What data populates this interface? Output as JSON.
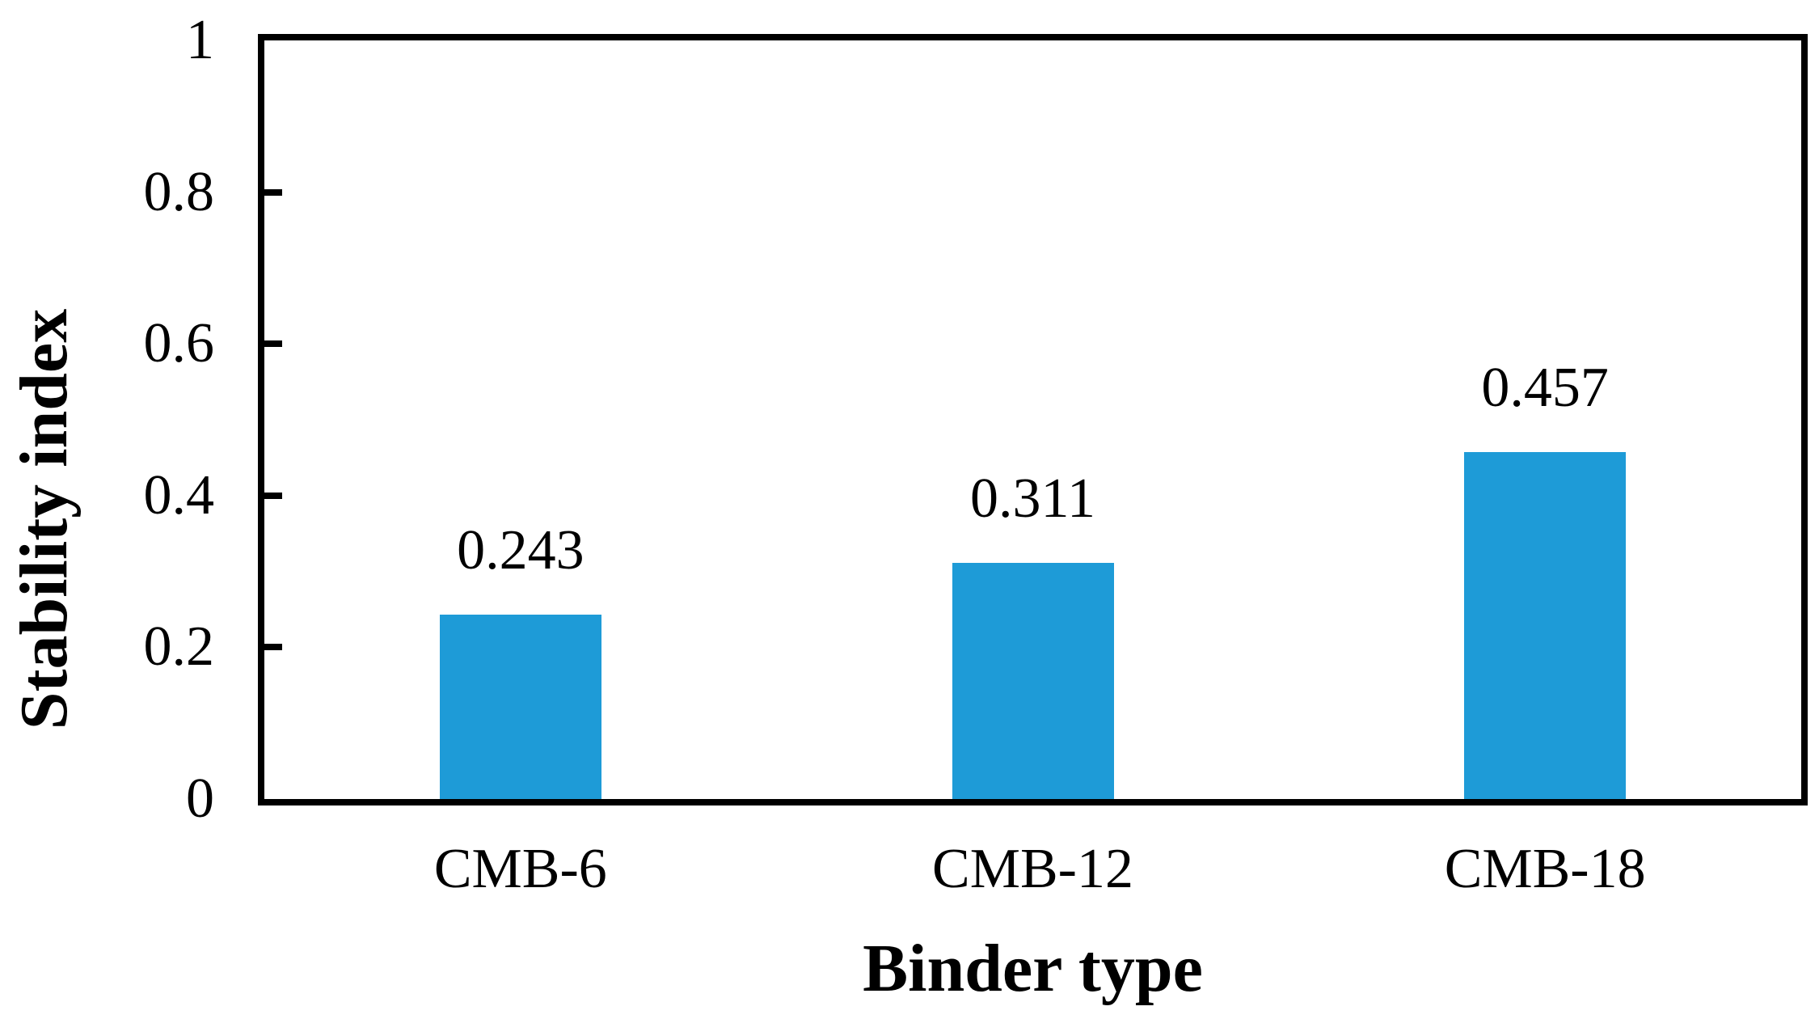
{
  "figure": {
    "background_color": "#ffffff",
    "text_color": "#000000"
  },
  "chart_data": {
    "type": "bar",
    "title": "",
    "xlabel": "Binder type",
    "ylabel": "Stability index",
    "categories": [
      "CMB-6",
      "CMB-12",
      "CMB-18"
    ],
    "values": [
      0.243,
      0.311,
      0.457
    ],
    "value_labels": [
      "0.243",
      "0.311",
      "0.457"
    ],
    "ylim": [
      0,
      1
    ],
    "yticks": [
      0,
      0.2,
      0.4,
      0.6,
      0.8,
      1
    ],
    "ytick_labels": [
      "0",
      "0.2",
      "0.4",
      "0.6",
      "0.8",
      "1"
    ],
    "bar_color": "#1E9BD7",
    "axis_color": "#000000",
    "grid": false,
    "legend_position": "none"
  }
}
